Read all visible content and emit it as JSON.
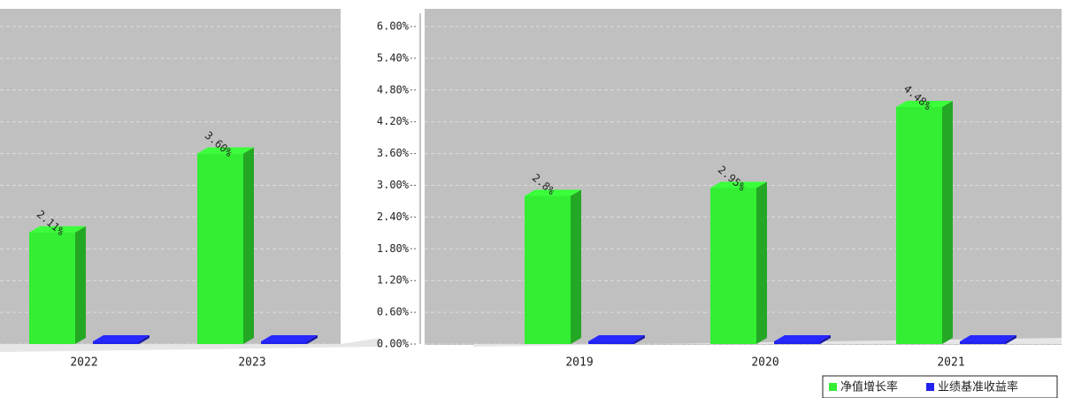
{
  "chart_data": {
    "type": "bar3d",
    "categories": [
      "2022",
      "2023",
      "2019",
      "2020",
      "2021"
    ],
    "series": [
      {
        "name": "净值增长率",
        "color": "#33ee33",
        "values": [
          2.11,
          3.6,
          2.8,
          2.95,
          4.48
        ],
        "value_labels": [
          "2.11%",
          "3.60%",
          "2.8%",
          "2.95%",
          "4.48%"
        ]
      },
      {
        "name": "业绩基准收益率",
        "color": "#2222ee",
        "values": [
          0.05,
          0.05,
          0.05,
          0.05,
          0.05
        ]
      }
    ],
    "ylim": [
      0,
      6
    ],
    "yticks": [
      {
        "value": 0,
        "label": "0.00%"
      },
      {
        "value": 0.6,
        "label": "0.60%"
      },
      {
        "value": 1.2,
        "label": "1.20%"
      },
      {
        "value": 1.8,
        "label": "1.80%"
      },
      {
        "value": 2.4,
        "label": "2.40%"
      },
      {
        "value": 3,
        "label": "3.00%"
      },
      {
        "value": 3.6,
        "label": "3.60%"
      },
      {
        "value": 4.2,
        "label": "4.20%"
      },
      {
        "value": 4.8,
        "label": "4.80%"
      },
      {
        "value": 5.4,
        "label": "5.40%"
      },
      {
        "value": 6,
        "label": "6.00%"
      }
    ],
    "grid": true,
    "legend": "bottom-right"
  }
}
